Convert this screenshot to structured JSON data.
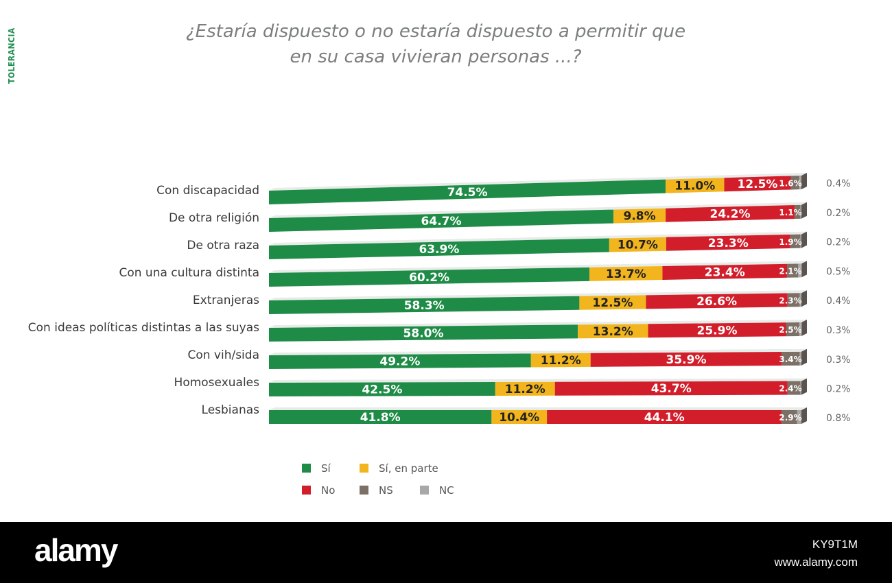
{
  "side_tag": "TOLERANCIA",
  "title_lines": [
    "¿Estaría dispuesto o no estaría dispuesto a permitir que",
    "en su casa vivieran personas ...?"
  ],
  "chart_data": {
    "type": "bar",
    "orientation": "horizontal",
    "stacked": true,
    "title": "¿Estaría dispuesto o no estaría dispuesto a permitir que en su casa vivieran personas ...?",
    "categories": [
      "Con discapacidad",
      "De otra religión",
      "De otra raza",
      "Con una cultura distinta",
      "Extranjeras",
      "Con ideas políticas distintas a las suyas",
      "Con vih/sida",
      "Homosexuales",
      "Lesbianas"
    ],
    "series": [
      {
        "name": "Sí",
        "color": "#1e8c46",
        "values": [
          74.5,
          64.7,
          63.9,
          60.2,
          58.3,
          58.0,
          49.2,
          42.5,
          41.8
        ]
      },
      {
        "name": "Sí, en parte",
        "color": "#f2b51e",
        "values": [
          11.0,
          9.8,
          10.7,
          13.7,
          12.5,
          13.2,
          11.2,
          11.2,
          10.4
        ]
      },
      {
        "name": "No",
        "color": "#d21e2b",
        "values": [
          12.5,
          24.2,
          23.3,
          23.4,
          26.6,
          25.9,
          35.9,
          43.7,
          44.1
        ]
      },
      {
        "name": "NS",
        "color": "#7b6f66",
        "values": [
          1.6,
          1.1,
          1.9,
          2.1,
          2.3,
          2.5,
          3.4,
          2.4,
          2.9
        ]
      },
      {
        "name": "NC",
        "color": "#a8a8a8",
        "values": [
          0.4,
          0.2,
          0.2,
          0.5,
          0.4,
          0.3,
          0.3,
          0.2,
          0.8
        ]
      }
    ],
    "value_labels": {
      "Sí": [
        "74.5%",
        "64.7%",
        "63.9%",
        "60.2%",
        "58.3%",
        "58.0%",
        "49.2%",
        "42.5%",
        "41.8%"
      ],
      "Sí, en parte": [
        "11.0%",
        "9.8%",
        "10.7%",
        "13.7%",
        "12.5%",
        "13.2%",
        "11.2%",
        "11.2%",
        "10.4%"
      ],
      "No": [
        "12.5%",
        "24.2%",
        "23.3%",
        "23.4%",
        "26.6%",
        "25.9%",
        "35.9%",
        "43.7%",
        "44.1%"
      ],
      "NS": [
        "1.6%",
        "1.1%",
        "1.9%",
        "2.1%",
        "2.3%",
        "2.5%",
        "3.4%",
        "2.4%",
        "2.9%"
      ],
      "NC": [
        "0.4%",
        "0.2%",
        "0.2%",
        "0.5%",
        "0.4%",
        "0.3%",
        "0.3%",
        "0.2%",
        "0.8%"
      ]
    },
    "legend": {
      "position": "bottom",
      "items": [
        {
          "label": "Sí",
          "color": "#1e8c46"
        },
        {
          "label": "Sí, en parte",
          "color": "#f2b51e"
        },
        {
          "label": "No",
          "color": "#d21e2b"
        },
        {
          "label": "NS",
          "color": "#7b6f66"
        },
        {
          "label": "NC",
          "color": "#a8a8a8"
        }
      ]
    },
    "colors": {
      "si": "#1e8c46",
      "si_en_parte": "#f2b51e",
      "no": "#d21e2b",
      "ns": "#7b6f66",
      "nc": "#a8a8a8",
      "label_text": "#3a3a3a",
      "nc_text": "#666666"
    }
  },
  "footer": {
    "brand": "alamy",
    "image_id": "KY9T1M",
    "site": "www.alamy.com"
  }
}
